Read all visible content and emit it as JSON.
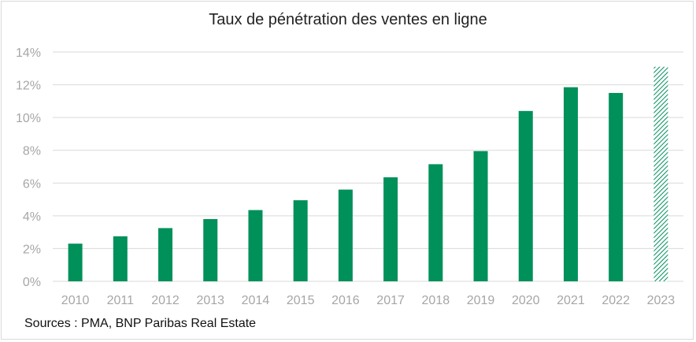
{
  "chart_data": {
    "type": "bar",
    "title": "Taux de pénétration des ventes en ligne",
    "categories": [
      "2010",
      "2011",
      "2012",
      "2013",
      "2014",
      "2015",
      "2016",
      "2017",
      "2018",
      "2019",
      "2020",
      "2021",
      "2022",
      "2023"
    ],
    "values": [
      2.3,
      2.75,
      3.25,
      3.8,
      4.35,
      4.95,
      5.6,
      6.35,
      7.15,
      7.95,
      10.4,
      11.85,
      11.5,
      13.1
    ],
    "projected": [
      false,
      false,
      false,
      false,
      false,
      false,
      false,
      false,
      false,
      false,
      false,
      false,
      false,
      true
    ],
    "y_ticks": [
      "0%",
      "2%",
      "4%",
      "6%",
      "8%",
      "10%",
      "12%",
      "14%"
    ],
    "ylim": [
      0,
      14
    ],
    "y_unit": "%",
    "xlabel": "",
    "ylabel": "",
    "grid": true,
    "legend": "none",
    "colors": {
      "bar": "#00905a",
      "projected": "#00905a",
      "grid": "#d9d9d9",
      "tick": "#a6a6a6"
    }
  },
  "footer": {
    "source": "Sources : PMA, BNP Paribas Real Estate"
  }
}
